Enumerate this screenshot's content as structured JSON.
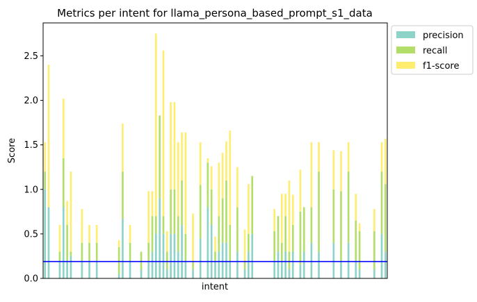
{
  "chart_data": {
    "type": "bar",
    "stacked": true,
    "title": "Metrics per intent for llama_persona_based_prompt_s1_data",
    "xlabel": "intent",
    "ylabel": "Score",
    "ylim": [
      0,
      2.87
    ],
    "yticks": [
      0.0,
      0.5,
      1.0,
      1.5,
      2.0,
      2.5
    ],
    "ytick_labels": [
      "0.0",
      "0.5",
      "1.0",
      "1.5",
      "2.0",
      "2.5"
    ],
    "xlim": [
      -0.5,
      92.5
    ],
    "grid": false,
    "legend_position": "outside top-right",
    "colors": {
      "precision": "#8dd3c7",
      "recall": "#b3de69",
      "f1-score": "#ffed6f",
      "baseline": "#0000ff"
    },
    "baseline": 0.19,
    "series": [
      {
        "name": "precision",
        "values": [
          1.0,
          0.8,
          0.0,
          0.0,
          0.2,
          0.8,
          0.2,
          0.25,
          0.0,
          0.0,
          0.2,
          0.0,
          0.2,
          0.0,
          0.2,
          0.0,
          0.0,
          0.0,
          0.0,
          0.0,
          0.05,
          0.67,
          0.0,
          0.2,
          0.0,
          0.0,
          0.1,
          0.0,
          0.2,
          0.3,
          0.5,
          0.9,
          0.5,
          0.1,
          0.5,
          0.5,
          0.3,
          0.6,
          0.2,
          0.0,
          0.1,
          0.0,
          0.45,
          0.0,
          0.8,
          0.6,
          0.2,
          0.3,
          0.4,
          0.4,
          0.2,
          0.0,
          0.3,
          0.0,
          0.1,
          0.3,
          0.5,
          0.0,
          0.0,
          0.0,
          0.0,
          0.0,
          0.2,
          0.3,
          0.2,
          0.3,
          0.1,
          0.3,
          0.0,
          0.15,
          0.3,
          0.0,
          0.4,
          0.0,
          0.3,
          0.0,
          0.0,
          0.0,
          0.4,
          0.0,
          0.2,
          0.0,
          0.4,
          0.0,
          0.2,
          0.1,
          0.0,
          0.0,
          0.0,
          0.1,
          0.0,
          0.5,
          0.3
        ]
      },
      {
        "name": "recall",
        "values": [
          0.2,
          0.0,
          0.0,
          0.0,
          0.1,
          0.55,
          0.4,
          0.05,
          0.0,
          0.0,
          0.2,
          0.0,
          0.2,
          0.0,
          0.2,
          0.0,
          0.0,
          0.0,
          0.0,
          0.0,
          0.3,
          0.53,
          0.0,
          0.2,
          0.0,
          0.0,
          0.2,
          0.0,
          0.2,
          0.4,
          0.2,
          0.93,
          0.2,
          0.2,
          0.5,
          0.5,
          0.4,
          0.5,
          0.3,
          0.0,
          0.1,
          0.0,
          0.6,
          0.0,
          0.5,
          0.4,
          0.1,
          0.4,
          0.5,
          0.7,
          0.4,
          0.0,
          0.5,
          0.0,
          0.1,
          0.2,
          0.65,
          0.0,
          0.0,
          0.0,
          0.0,
          0.0,
          0.33,
          0.4,
          0.2,
          0.4,
          0.2,
          0.3,
          0.0,
          0.6,
          0.5,
          0.0,
          0.4,
          0.0,
          0.9,
          0.0,
          0.0,
          0.0,
          0.6,
          0.0,
          0.78,
          0.0,
          0.8,
          0.0,
          0.45,
          0.43,
          0.0,
          0.0,
          0.0,
          0.43,
          0.0,
          0.7,
          0.76
        ]
      },
      {
        "name": "f1-score",
        "values": [
          0.33,
          1.6,
          0.0,
          0.0,
          0.3,
          0.67,
          0.27,
          0.9,
          0.0,
          0.0,
          0.38,
          0.0,
          0.2,
          0.0,
          0.2,
          0.0,
          0.0,
          0.0,
          0.0,
          0.0,
          0.08,
          0.54,
          0.0,
          0.2,
          0.0,
          0.0,
          0.0,
          0.0,
          0.58,
          0.28,
          2.05,
          0.0,
          1.86,
          0.23,
          0.98,
          0.98,
          0.83,
          0.54,
          1.14,
          0.0,
          0.53,
          0.0,
          0.48,
          0.0,
          0.05,
          0.26,
          0.17,
          0.6,
          0.51,
          0.44,
          1.06,
          0.0,
          0.45,
          0.0,
          0.35,
          0.56,
          0.0,
          0.0,
          0.0,
          0.0,
          0.0,
          0.0,
          0.25,
          0.0,
          0.55,
          0.25,
          0.8,
          0.34,
          0.0,
          0.47,
          0.0,
          0.0,
          0.73,
          0.0,
          0.33,
          0.0,
          0.0,
          0.0,
          0.44,
          0.0,
          0.45,
          0.0,
          0.33,
          0.0,
          0.3,
          0.09,
          0.0,
          0.0,
          0.0,
          0.25,
          0.0,
          0.33,
          0.51
        ]
      }
    ]
  }
}
